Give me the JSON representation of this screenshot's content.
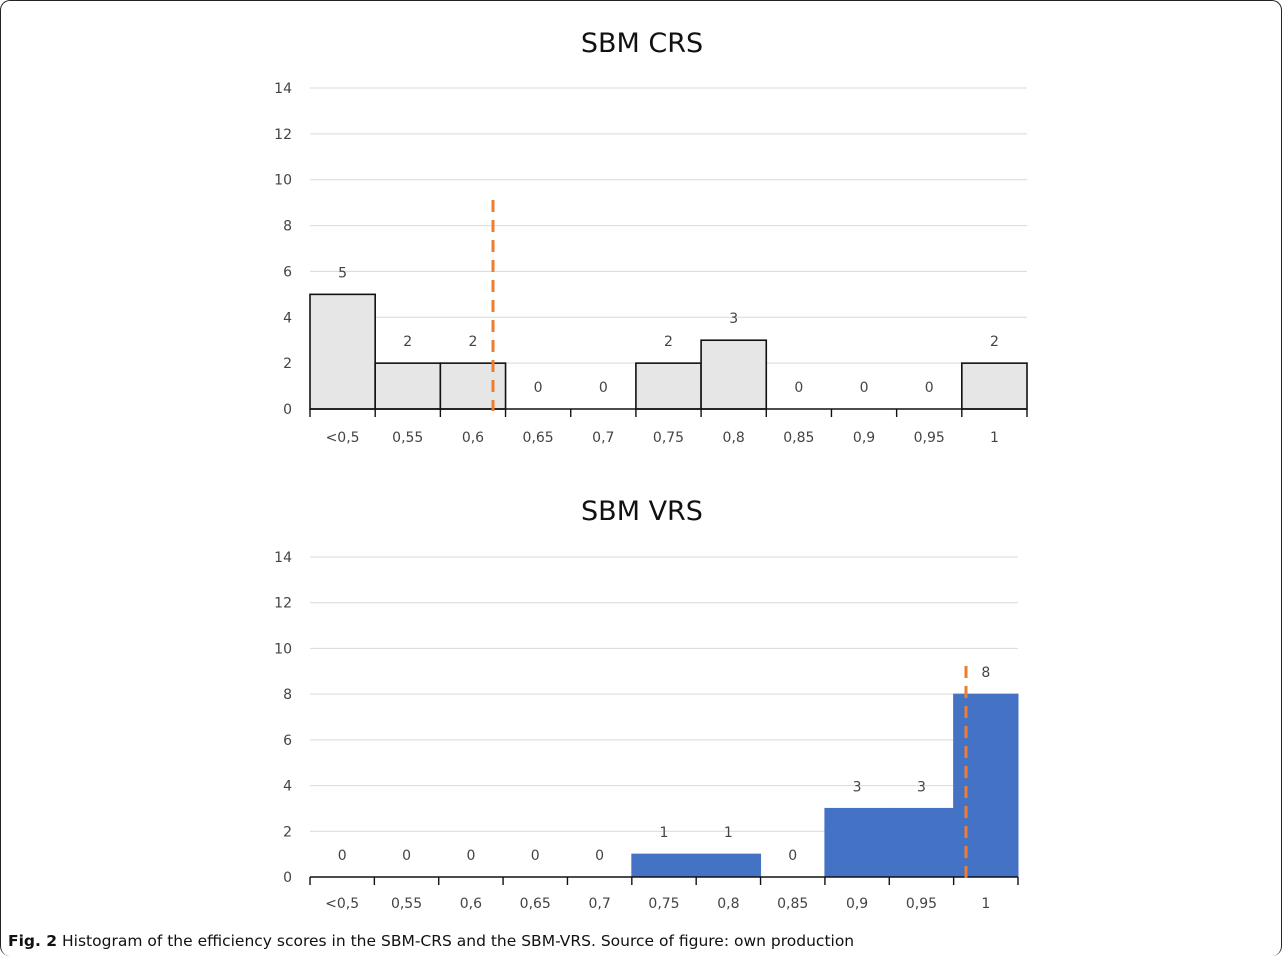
{
  "chart_data": [
    {
      "type": "bar",
      "title": "SBM CRS",
      "categories": [
        "<0,5",
        "0,55",
        "0,6",
        "0,65",
        "0,7",
        "0,75",
        "0,8",
        "0,85",
        "0,9",
        "0,95",
        "1"
      ],
      "values": [
        5,
        2,
        2,
        0,
        0,
        2,
        3,
        0,
        0,
        0,
        2
      ],
      "yticks": [
        "0",
        "2",
        "4",
        "6",
        "8",
        "10",
        "12",
        "14"
      ],
      "ylim": [
        0,
        14
      ],
      "bar_color": "#e6e6e6",
      "bar_edge_color": "#111111",
      "reference_line_color": "#ed7d31",
      "reference_line_x": 0.6,
      "grid": true
    },
    {
      "type": "bar",
      "title": "SBM VRS",
      "categories": [
        "<0,5",
        "0,55",
        "0,6",
        "0,65",
        "0,7",
        "0,75",
        "0,8",
        "0,85",
        "0,9",
        "0,95",
        "1"
      ],
      "values": [
        0,
        0,
        0,
        0,
        0,
        1,
        1,
        0,
        3,
        3,
        8
      ],
      "yticks": [
        "0",
        "2",
        "4",
        "6",
        "8",
        "10",
        "12",
        "14"
      ],
      "ylim": [
        0,
        14
      ],
      "bar_color": "#4472c4",
      "bar_edge_color": "#4472c4",
      "reference_line_color": "#ed7d31",
      "reference_line_x": 0.98,
      "grid": true
    }
  ],
  "caption": {
    "label": "Fig. 2",
    "text": " Histogram of the efficiency scores in the SBM-CRS and the SBM-VRS. Source of figure: own production"
  }
}
